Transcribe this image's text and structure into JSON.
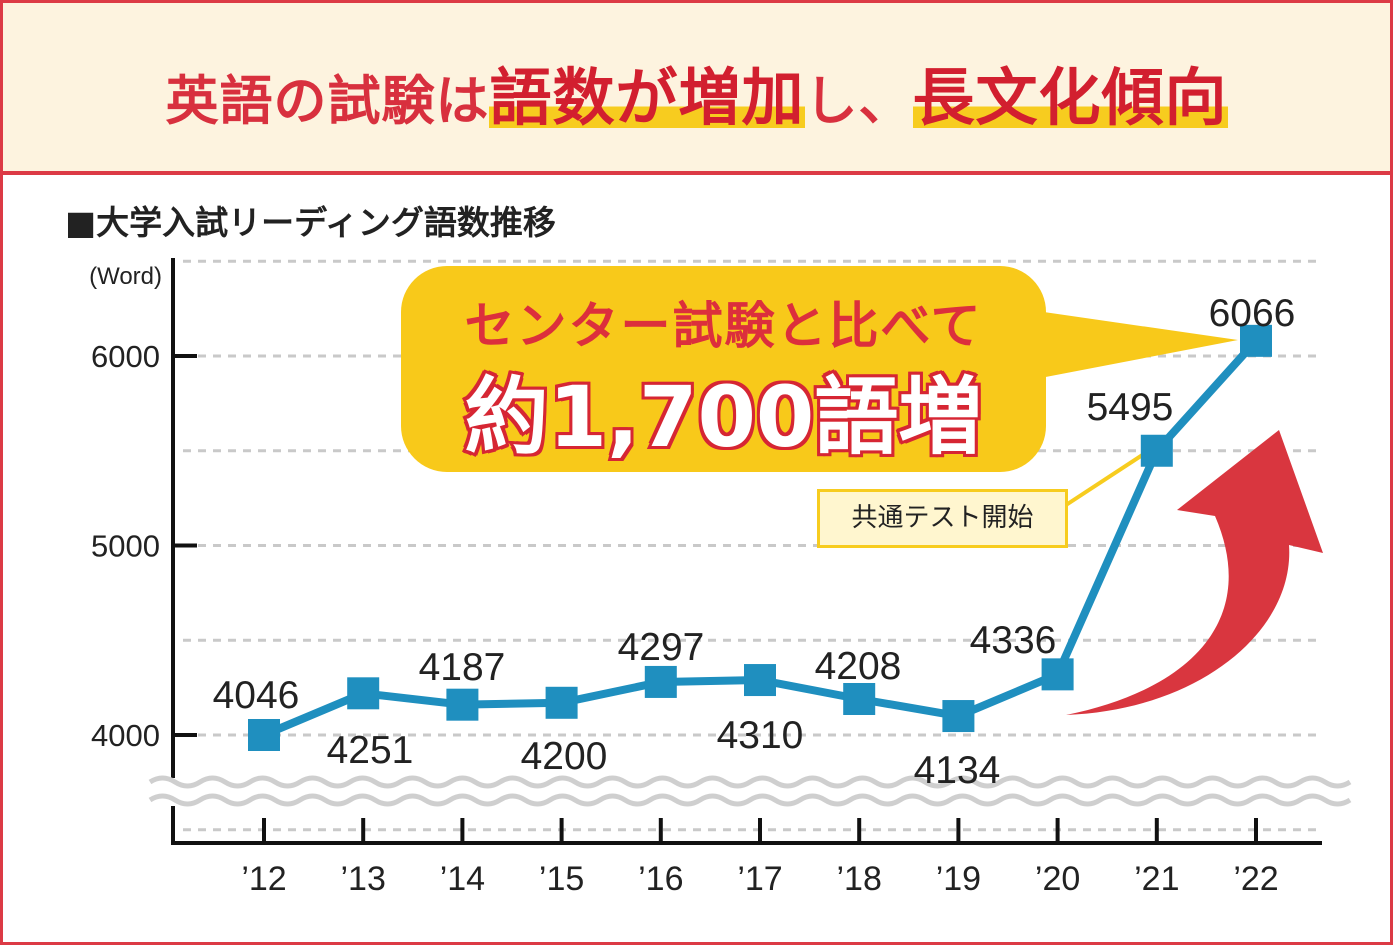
{
  "headline": {
    "part1": "英語の試験は",
    "part2": "語数が増加",
    "part3": "し、",
    "part4": "長文化傾向"
  },
  "chart_title": "■大学入試リーディング語数推移",
  "callout": {
    "line1": "センター試験と比べて",
    "line2": "約1,700語増"
  },
  "annotation": "共通テスト開始",
  "colors": {
    "border": "#dc3a45",
    "header_bg": "#fdf3df",
    "headline_text": "#d8303e",
    "highlight": "#f7cc1f",
    "line": "#1f8fbf",
    "arrow": "#d9363f",
    "callout_bg": "#f8c91a"
  },
  "chart_data": {
    "type": "line",
    "title": "大学入試リーディング語数推移",
    "ylabel": "(Word)",
    "xlabel": "",
    "categories": [
      "’12",
      "’13",
      "’14",
      "’15",
      "’16",
      "’17",
      "’18",
      "’19",
      "’20",
      "’21",
      "’22"
    ],
    "series": [
      {
        "name": "語数",
        "values": [
          4046,
          4251,
          4187,
          4200,
          4297,
          4310,
          4208,
          4134,
          4336,
          5495,
          6066
        ],
        "labels": [
          "4046",
          "4251",
          "4187",
          "4200",
          "4297",
          "4310",
          "4208",
          "4134",
          "4336",
          "5495",
          "6066"
        ]
      }
    ],
    "plotted_values": [
      4000,
      4220,
      4160,
      4170,
      4280,
      4290,
      4190,
      4100,
      4320,
      5500,
      6080
    ],
    "yticks": [
      4000,
      5000,
      6000
    ],
    "ytick_labels": [
      "4000",
      "5000",
      "6000"
    ],
    "ylim": [
      3450,
      6540
    ],
    "axis_break": true,
    "grid": true
  }
}
